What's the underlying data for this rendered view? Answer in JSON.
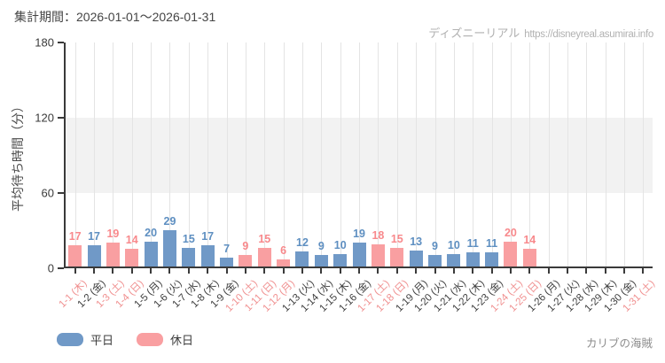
{
  "header": {
    "title": "集計期間：2026-01-01～2026-01-31",
    "watermark_brand": "ディズニーリアル",
    "watermark_url": "https://disneyreal.asumirai.info"
  },
  "footer": {
    "attraction": "カリブの海賊"
  },
  "colors": {
    "bar_weekday": "#7099c7",
    "bar_holiday": "#f99fa1",
    "value_label_weekday": "#5e8fc1",
    "value_label_holiday": "#f8898c",
    "xlabel_weekday": "#3d3d3d",
    "xlabel_holiday": "#f09090",
    "axis": "#3a3a3a",
    "gridline": "#e4e4e4",
    "shaded_band": "#f2f2f2"
  },
  "chart_data": {
    "type": "bar",
    "title": "集計期間：2026-01-01～2026-01-31",
    "xlabel": "",
    "ylabel": "平均待ち時間（分）",
    "ylim": [
      0,
      180
    ],
    "yticks": [
      0,
      60,
      120,
      180
    ],
    "shaded_band_y": [
      60,
      120
    ],
    "grid": "vertical-per-day",
    "legend_position": "bottom-left",
    "legend": [
      {
        "label": "平日",
        "type": "weekday",
        "color": "#7099c7"
      },
      {
        "label": "休日",
        "type": "holiday",
        "color": "#f99fa1"
      }
    ],
    "days": [
      {
        "label": "1-1 (木)",
        "value": 17,
        "type": "holiday"
      },
      {
        "label": "1-2 (金)",
        "value": 17,
        "type": "weekday"
      },
      {
        "label": "1-3 (土)",
        "value": 19,
        "type": "holiday"
      },
      {
        "label": "1-4 (日)",
        "value": 14,
        "type": "holiday"
      },
      {
        "label": "1-5 (月)",
        "value": 20,
        "type": "weekday"
      },
      {
        "label": "1-6 (火)",
        "value": 29,
        "type": "weekday"
      },
      {
        "label": "1-7 (水)",
        "value": 15,
        "type": "weekday"
      },
      {
        "label": "1-8 (木)",
        "value": 17,
        "type": "weekday"
      },
      {
        "label": "1-9 (金)",
        "value": 7,
        "type": "weekday"
      },
      {
        "label": "1-10 (土)",
        "value": 9,
        "type": "holiday"
      },
      {
        "label": "1-11 (日)",
        "value": 15,
        "type": "holiday"
      },
      {
        "label": "1-12 (月)",
        "value": 6,
        "type": "holiday"
      },
      {
        "label": "1-13 (火)",
        "value": 12,
        "type": "weekday"
      },
      {
        "label": "1-14 (水)",
        "value": 9,
        "type": "weekday"
      },
      {
        "label": "1-15 (木)",
        "value": 10,
        "type": "weekday"
      },
      {
        "label": "1-16 (金)",
        "value": 19,
        "type": "weekday"
      },
      {
        "label": "1-17 (土)",
        "value": 18,
        "type": "holiday"
      },
      {
        "label": "1-18 (日)",
        "value": 15,
        "type": "holiday"
      },
      {
        "label": "1-19 (月)",
        "value": 13,
        "type": "weekday"
      },
      {
        "label": "1-20 (火)",
        "value": 9,
        "type": "weekday"
      },
      {
        "label": "1-21 (水)",
        "value": 10,
        "type": "weekday"
      },
      {
        "label": "1-22 (木)",
        "value": 11,
        "type": "weekday"
      },
      {
        "label": "1-23 (金)",
        "value": 11,
        "type": "weekday"
      },
      {
        "label": "1-24 (土)",
        "value": 20,
        "type": "holiday"
      },
      {
        "label": "1-25 (日)",
        "value": 14,
        "type": "holiday"
      },
      {
        "label": "1-26 (月)",
        "value": null,
        "type": "weekday"
      },
      {
        "label": "1-27 (火)",
        "value": null,
        "type": "weekday"
      },
      {
        "label": "1-28 (水)",
        "value": null,
        "type": "weekday"
      },
      {
        "label": "1-29 (木)",
        "value": null,
        "type": "weekday"
      },
      {
        "label": "1-30 (金)",
        "value": null,
        "type": "weekday"
      },
      {
        "label": "1-31 (土)",
        "value": null,
        "type": "holiday"
      }
    ]
  }
}
